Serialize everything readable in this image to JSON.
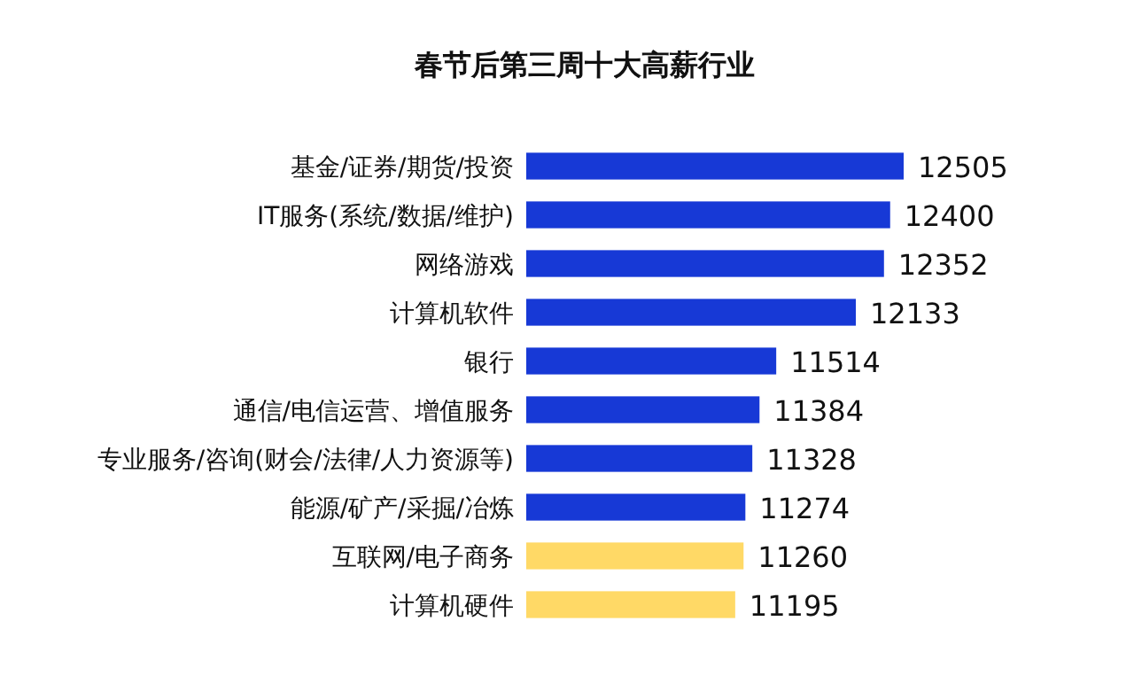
{
  "chart_data": {
    "type": "bar",
    "orientation": "horizontal",
    "title": "春节后第三周十大高薪行业",
    "categories": [
      "基金/证券/期货/投资",
      "IT服务(系统/数据/维护)",
      "网络游戏",
      "计算机软件",
      "银行",
      "通信/电信运营、增值服务",
      "专业服务/咨询(财会/法律/人力资源等)",
      "能源/矿产/采掘/冶炼",
      "互联网/电子商务",
      "计算机硬件"
    ],
    "values": [
      12505,
      12400,
      12352,
      12133,
      11514,
      11384,
      11328,
      11274,
      11260,
      11195
    ],
    "colors": [
      "#1739d6",
      "#1739d6",
      "#1739d6",
      "#1739d6",
      "#1739d6",
      "#1739d6",
      "#1739d6",
      "#1739d6",
      "#ffd966",
      "#ffd966"
    ],
    "xlim": [
      9570,
      12505
    ],
    "data_labels": true
  }
}
